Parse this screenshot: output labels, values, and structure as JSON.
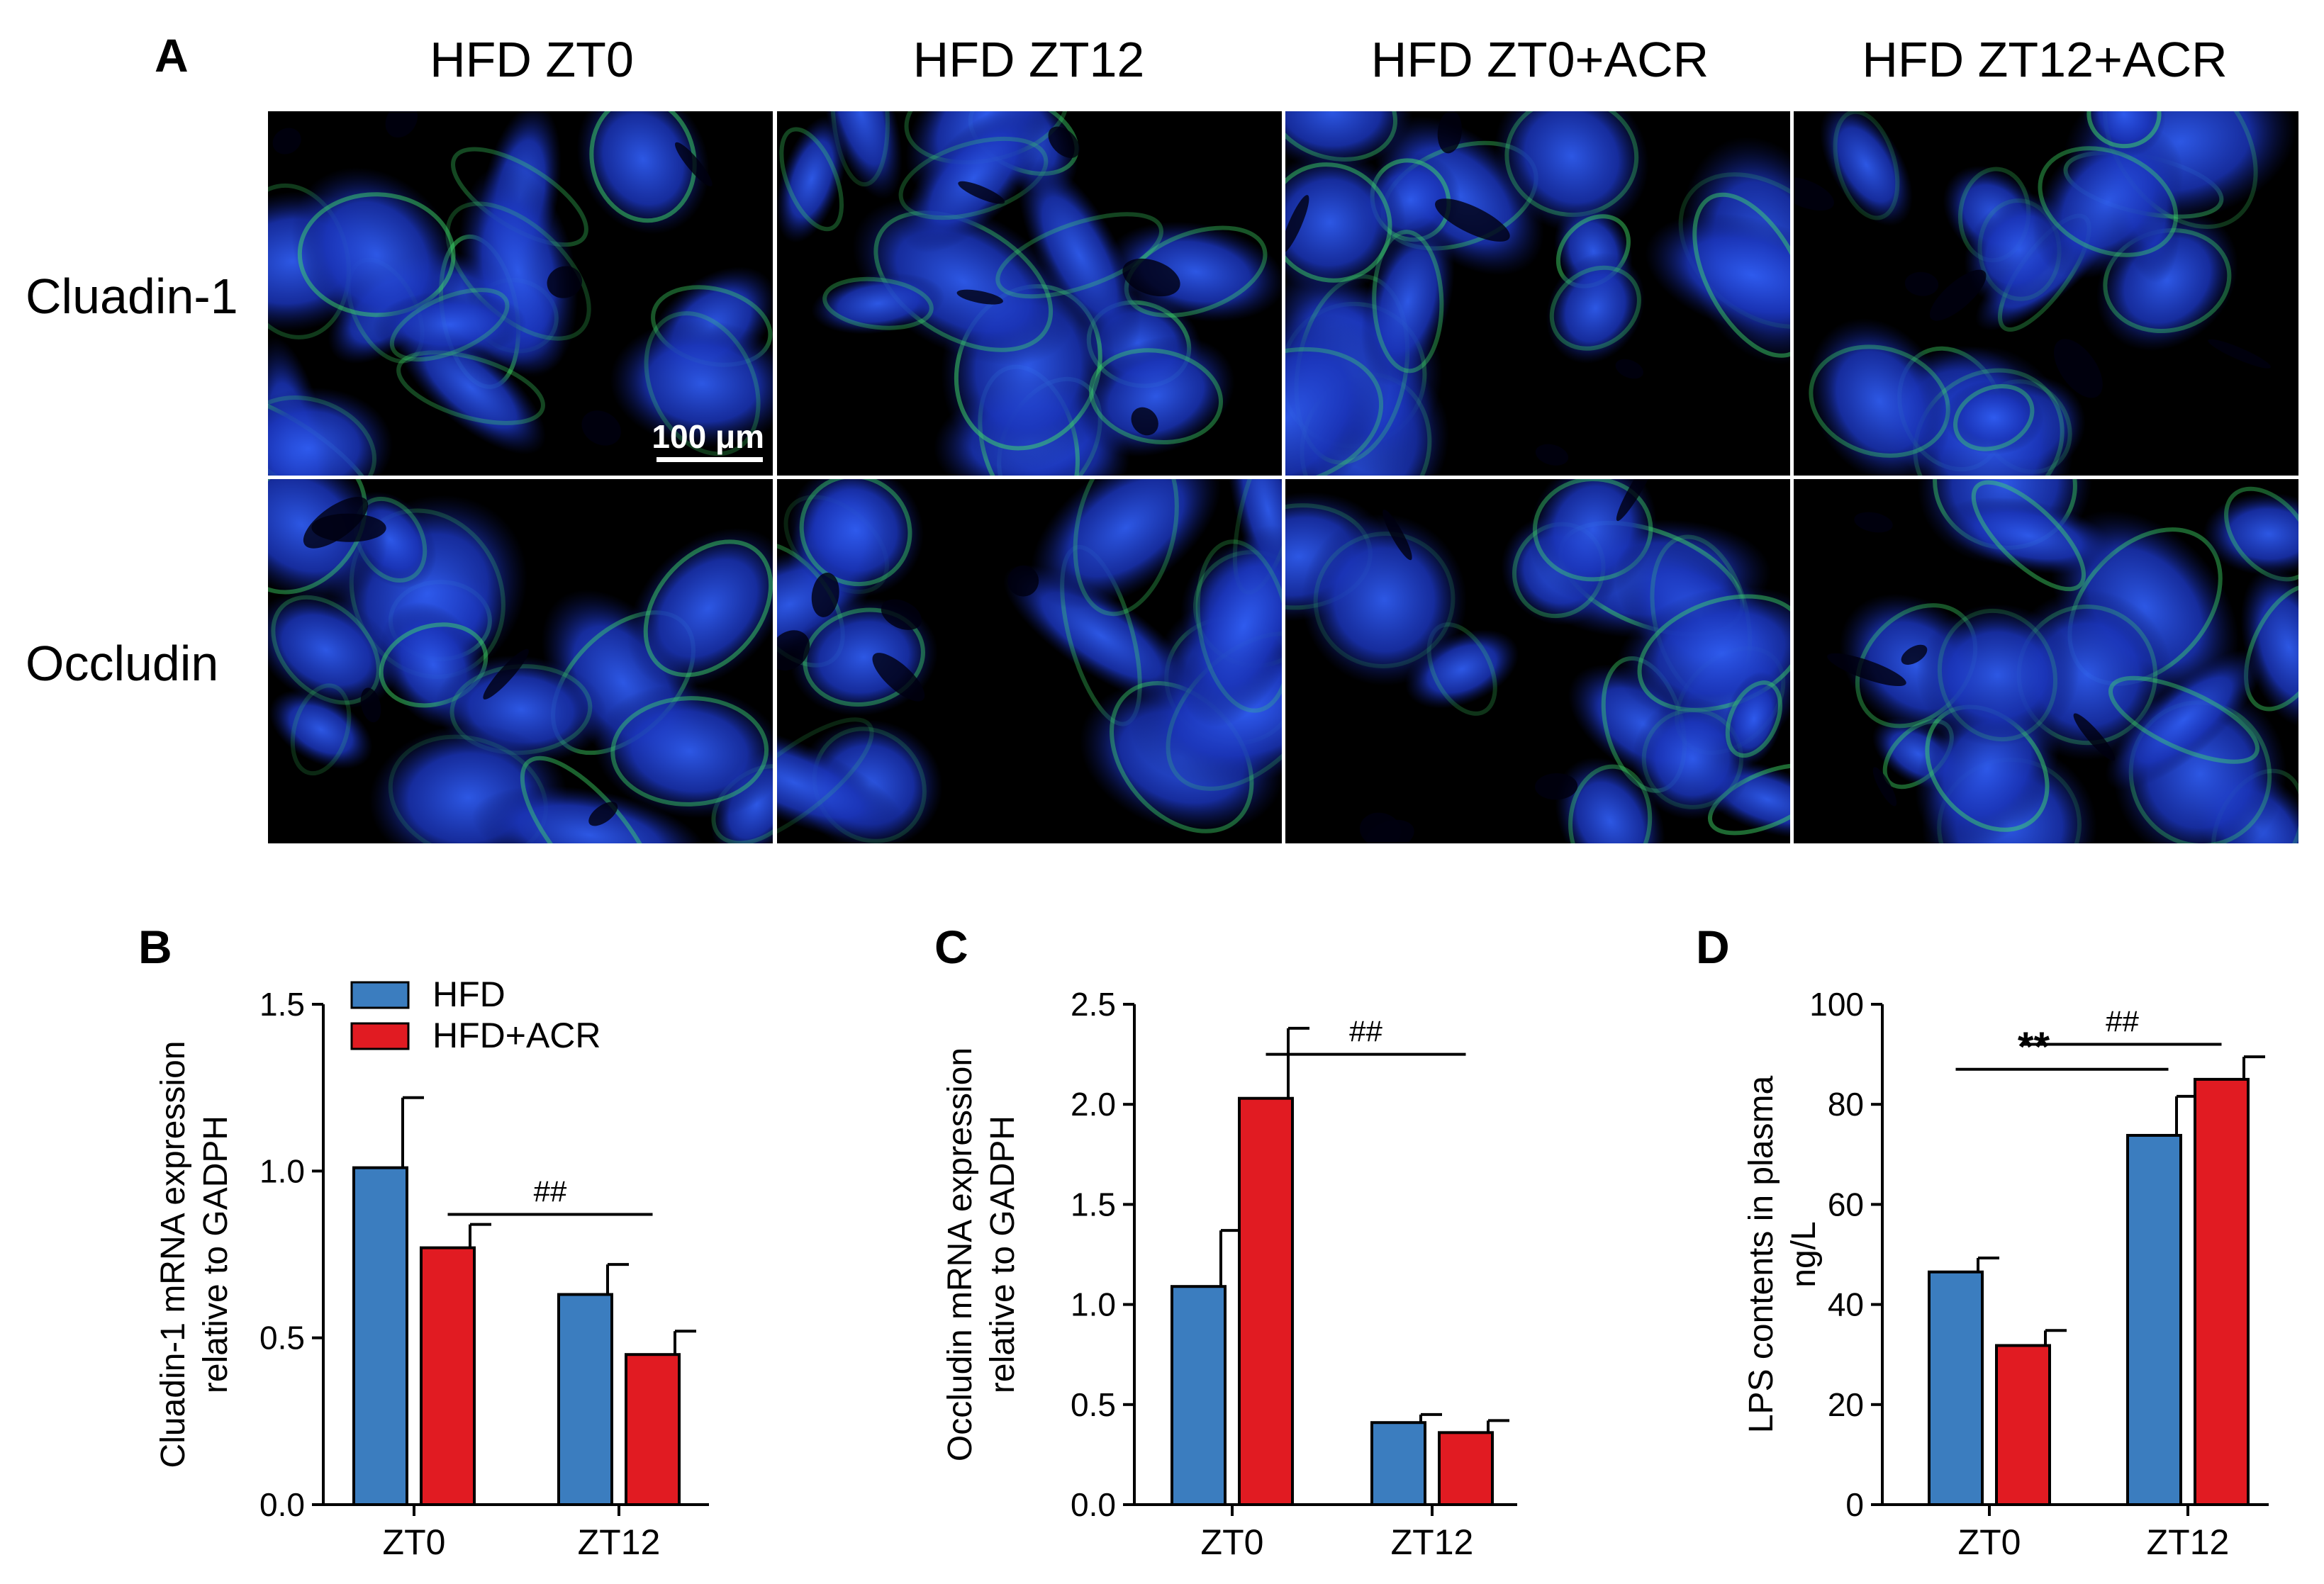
{
  "panel_a": {
    "letter": "A",
    "columns": [
      "HFD ZT0",
      "HFD ZT12",
      "HFD ZT0+ACR",
      "HFD ZT12+ACR"
    ],
    "rows": [
      "Cluadin-1",
      "Occludin"
    ],
    "scale_bar": "100 μm",
    "stain_colors": {
      "nuclei": "#1f3fd6",
      "marker": "#3fe06a"
    }
  },
  "colors": {
    "HFD": "#3b7dbf",
    "HFD+ACR": "#e11b22"
  },
  "chart_data": [
    {
      "panel": "B",
      "type": "bar",
      "categories": [
        "ZT0",
        "ZT12"
      ],
      "series": [
        {
          "name": "HFD",
          "values": [
            1.01,
            0.63
          ],
          "errors": [
            0.21,
            0.09
          ]
        },
        {
          "name": "HFD+ACR",
          "values": [
            0.77,
            0.45
          ],
          "errors": [
            0.07,
            0.07
          ]
        }
      ],
      "ylabel": [
        "Cluadin-1 mRNA expression",
        "relative to GADPH"
      ],
      "ylim": [
        0,
        1.5
      ],
      "yticks": [
        "0.0",
        "0.5",
        "1.0",
        "1.5"
      ],
      "legend": "top-left",
      "annotations": [
        {
          "text": "##",
          "from": "ZT0 HFD+ACR",
          "to": "ZT12 HFD+ACR"
        }
      ]
    },
    {
      "panel": "C",
      "type": "bar",
      "categories": [
        "ZT0",
        "ZT12"
      ],
      "series": [
        {
          "name": "HFD",
          "values": [
            1.09,
            0.41
          ],
          "errors": [
            0.28,
            0.04
          ]
        },
        {
          "name": "HFD+ACR",
          "values": [
            2.03,
            0.36
          ],
          "errors": [
            0.35,
            0.06
          ]
        }
      ],
      "ylabel": [
        "Occludin mRNA expression",
        "relative to GADPH"
      ],
      "ylim": [
        0,
        2.5
      ],
      "yticks": [
        "0.0",
        "0.5",
        "1.0",
        "1.5",
        "2.0",
        "2.5"
      ],
      "annotations": [
        {
          "text": "##",
          "from": "ZT0 HFD+ACR",
          "to": "ZT12 HFD+ACR"
        }
      ]
    },
    {
      "panel": "D",
      "type": "bar",
      "categories": [
        "ZT0",
        "ZT12"
      ],
      "series": [
        {
          "name": "HFD",
          "values": [
            46.5,
            73.8
          ],
          "errors": [
            2.8,
            7.8
          ]
        },
        {
          "name": "HFD+ACR",
          "values": [
            31.8,
            85.0
          ],
          "errors": [
            3.0,
            4.5
          ]
        }
      ],
      "ylabel": [
        "LPS contents in plasma",
        "ng/L"
      ],
      "ylim": [
        0,
        100
      ],
      "yticks": [
        "0",
        "20",
        "40",
        "60",
        "80",
        "100"
      ],
      "annotations": [
        {
          "text": "##",
          "from": "ZT0 HFD+ACR",
          "to": "ZT12 HFD+ACR"
        },
        {
          "text": "**",
          "from": "ZT0 HFD",
          "to": "ZT12 HFD"
        }
      ]
    }
  ]
}
